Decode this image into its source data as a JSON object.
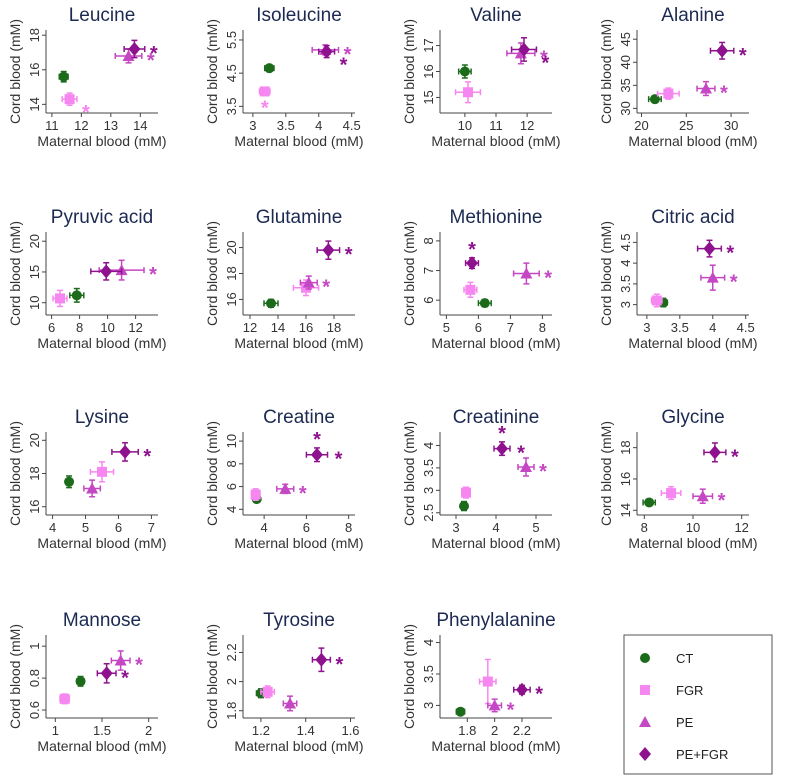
{
  "colors": {
    "CT": "#1b6b1b",
    "FGR": "#f787f0",
    "PE": "#c447c4",
    "PE+FGR": "#8e128e"
  },
  "legend": [
    {
      "label": "CT",
      "marker": "circle",
      "color": "#1b6b1b"
    },
    {
      "label": "FGR",
      "marker": "square",
      "color": "#f787f0"
    },
    {
      "label": "PE",
      "marker": "triangle",
      "color": "#c447c4"
    },
    {
      "label": "PE+FGR",
      "marker": "diamond",
      "color": "#8e128e"
    }
  ],
  "chart_data": [
    {
      "type": "scatter",
      "title": "Leucine",
      "xlabel": "Maternal blood (mM)",
      "ylabel": "Cord blood (mM)",
      "xlim": [
        10.8,
        14.6
      ],
      "ylim": [
        13.5,
        18.3
      ],
      "xticks": [
        11,
        12,
        13,
        14
      ],
      "yticks": [
        14,
        16,
        18
      ],
      "points": [
        {
          "group": "CT",
          "x": 11.4,
          "xerr": 0.15,
          "y": 15.6,
          "yerr": 0.3,
          "star": false
        },
        {
          "group": "FGR",
          "x": 11.6,
          "xerr": 0.25,
          "y": 14.3,
          "yerr": 0.35,
          "star": true,
          "star_pos": ""
        },
        {
          "group": "PE",
          "x": 13.6,
          "xerr": 0.45,
          "y": 16.8,
          "yerr": 0.4,
          "star": true,
          "star_pos": "right"
        },
        {
          "group": "PE+FGR",
          "x": 13.8,
          "xerr": 0.35,
          "y": 17.2,
          "yerr": 0.5,
          "star": true,
          "star_pos": "right"
        }
      ]
    },
    {
      "type": "scatter",
      "title": "Isoleucine",
      "xlabel": "Maternal blood (mM)",
      "ylabel": "Cord blood (mM)",
      "xlim": [
        2.85,
        4.55
      ],
      "ylim": [
        3.3,
        5.8
      ],
      "xticks": [
        3,
        3.5,
        4,
        4.5
      ],
      "yticks": [
        3.5,
        4.5,
        5.5
      ],
      "points": [
        {
          "group": "CT",
          "x": 3.25,
          "xerr": 0.07,
          "y": 4.65,
          "yerr": 0.09,
          "star": false
        },
        {
          "group": "FGR",
          "x": 3.18,
          "xerr": 0.08,
          "y": 3.95,
          "yerr": 0.1,
          "star": true,
          "star_pos": "below"
        },
        {
          "group": "PE",
          "x": 4.1,
          "xerr": 0.2,
          "y": 5.2,
          "yerr": 0.15,
          "star": true,
          "star_pos": "right"
        },
        {
          "group": "PE+FGR",
          "x": 4.12,
          "xerr": 0.12,
          "y": 5.15,
          "yerr": 0.18,
          "star": true,
          "star_pos": ""
        }
      ]
    },
    {
      "type": "scatter",
      "title": "Valine",
      "xlabel": "Maternal blood (mM)",
      "ylabel": "Cord blood (mM)",
      "xlim": [
        9.2,
        12.8
      ],
      "ylim": [
        14.4,
        17.6
      ],
      "xticks": [
        10,
        11,
        12
      ],
      "yticks": [
        15,
        16,
        17
      ],
      "points": [
        {
          "group": "CT",
          "x": 10.0,
          "xerr": 0.2,
          "y": 16.0,
          "yerr": 0.25,
          "star": false
        },
        {
          "group": "FGR",
          "x": 10.1,
          "xerr": 0.4,
          "y": 15.2,
          "yerr": 0.4,
          "star": false
        },
        {
          "group": "PE",
          "x": 11.8,
          "xerr": 0.45,
          "y": 16.7,
          "yerr": 0.4,
          "star": true,
          "star_pos": "right"
        },
        {
          "group": "PE+FGR",
          "x": 11.9,
          "xerr": 0.4,
          "y": 16.85,
          "yerr": 0.45,
          "star": true,
          "star_pos": ""
        }
      ]
    },
    {
      "type": "scatter",
      "title": "Alanine",
      "xlabel": "Maternal blood (mM)",
      "ylabel": "Cord blood (mM)",
      "xlim": [
        19.5,
        32
      ],
      "ylim": [
        29,
        47
      ],
      "xticks": [
        20,
        25,
        30
      ],
      "yticks": [
        30,
        35,
        40,
        45
      ],
      "points": [
        {
          "group": "CT",
          "x": 21.5,
          "xerr": 0.7,
          "y": 32.0,
          "yerr": 0.6,
          "star": false
        },
        {
          "group": "FGR",
          "x": 23.0,
          "xerr": 1.2,
          "y": 33.2,
          "yerr": 1.2,
          "star": false
        },
        {
          "group": "PE",
          "x": 27.2,
          "xerr": 1.0,
          "y": 34.3,
          "yerr": 1.5,
          "star": true,
          "star_pos": "right"
        },
        {
          "group": "PE+FGR",
          "x": 29.0,
          "xerr": 1.3,
          "y": 42.5,
          "yerr": 1.8,
          "star": true,
          "star_pos": "right"
        }
      ]
    },
    {
      "type": "scatter",
      "title": "Pyruvic acid",
      "xlabel": "Maternal blood (mM)",
      "ylabel": "Cord blood (mM)",
      "xlim": [
        5.6,
        13.6
      ],
      "ylim": [
        8.0,
        21.5
      ],
      "xticks": [
        6,
        8,
        10,
        12
      ],
      "yticks": [
        10,
        15,
        20
      ],
      "points": [
        {
          "group": "CT",
          "x": 7.8,
          "xerr": 0.5,
          "y": 11.2,
          "yerr": 1.1,
          "star": false
        },
        {
          "group": "FGR",
          "x": 6.6,
          "xerr": 0.5,
          "y": 10.7,
          "yerr": 1.3,
          "star": false
        },
        {
          "group": "PE",
          "x": 11.0,
          "xerr": 1.6,
          "y": 15.3,
          "yerr": 1.6,
          "star": true,
          "star_pos": "right"
        },
        {
          "group": "PE+FGR",
          "x": 9.9,
          "xerr": 1.1,
          "y": 15.1,
          "yerr": 1.4,
          "star": false
        }
      ]
    },
    {
      "type": "scatter",
      "title": "Glutamine",
      "xlabel": "Maternal blood (mM)",
      "ylabel": "Cord blood (mM)",
      "xlim": [
        11.5,
        19.5
      ],
      "ylim": [
        14.8,
        21.2
      ],
      "xticks": [
        12,
        14,
        16,
        18
      ],
      "yticks": [
        16,
        18,
        20
      ],
      "points": [
        {
          "group": "CT",
          "x": 13.5,
          "xerr": 0.5,
          "y": 15.7,
          "yerr": 0.3,
          "star": false
        },
        {
          "group": "FGR",
          "x": 16.0,
          "xerr": 0.9,
          "y": 16.9,
          "yerr": 0.6,
          "star": false
        },
        {
          "group": "PE",
          "x": 16.2,
          "xerr": 0.6,
          "y": 17.3,
          "yerr": 0.5,
          "star": true,
          "star_pos": "right"
        },
        {
          "group": "PE+FGR",
          "x": 17.6,
          "xerr": 0.8,
          "y": 19.8,
          "yerr": 0.7,
          "star": true,
          "star_pos": "right"
        }
      ]
    },
    {
      "type": "scatter",
      "title": "Methionine",
      "xlabel": "Maternal blood (mM)",
      "ylabel": "Cord blood (mM)",
      "xlim": [
        4.8,
        8.3
      ],
      "ylim": [
        5.5,
        8.3
      ],
      "xticks": [
        5,
        6,
        7,
        8
      ],
      "yticks": [
        6,
        7,
        8
      ],
      "points": [
        {
          "group": "CT",
          "x": 6.2,
          "xerr": 0.2,
          "y": 5.9,
          "yerr": 0.12,
          "star": false
        },
        {
          "group": "FGR",
          "x": 5.75,
          "xerr": 0.2,
          "y": 6.35,
          "yerr": 0.25,
          "star": false
        },
        {
          "group": "PE",
          "x": 7.5,
          "xerr": 0.4,
          "y": 6.9,
          "yerr": 0.35,
          "star": true,
          "star_pos": "right"
        },
        {
          "group": "PE+FGR",
          "x": 5.8,
          "xerr": 0.2,
          "y": 7.25,
          "yerr": 0.18,
          "star": true,
          "star_pos": "above"
        }
      ]
    },
    {
      "type": "scatter",
      "title": "Citric acid",
      "xlabel": "Maternal blood (mM)",
      "ylabel": "Cord blood (mM)",
      "xlim": [
        2.85,
        4.55
      ],
      "ylim": [
        2.75,
        4.75
      ],
      "xticks": [
        3,
        3.5,
        4,
        4.5
      ],
      "yticks": [
        3,
        3.5,
        4,
        4.5
      ],
      "points": [
        {
          "group": "CT",
          "x": 3.25,
          "xerr": 0.06,
          "y": 3.05,
          "yerr": 0.1,
          "star": false
        },
        {
          "group": "FGR",
          "x": 3.15,
          "xerr": 0.08,
          "y": 3.1,
          "yerr": 0.15,
          "star": false
        },
        {
          "group": "PE",
          "x": 4.0,
          "xerr": 0.18,
          "y": 3.65,
          "yerr": 0.3,
          "star": true,
          "star_pos": "right"
        },
        {
          "group": "PE+FGR",
          "x": 3.95,
          "xerr": 0.18,
          "y": 4.35,
          "yerr": 0.2,
          "star": true,
          "star_pos": "right"
        }
      ]
    },
    {
      "type": "scatter",
      "title": "Lysine",
      "xlabel": "Maternal blood (mM)",
      "ylabel": "Cord blood (mM)",
      "xlim": [
        3.8,
        7.2
      ],
      "ylim": [
        15.5,
        20.5
      ],
      "xticks": [
        4,
        5,
        6,
        7
      ],
      "yticks": [
        16,
        18,
        20
      ],
      "points": [
        {
          "group": "CT",
          "x": 4.5,
          "xerr": 0.1,
          "y": 17.5,
          "yerr": 0.35,
          "star": false
        },
        {
          "group": "FGR",
          "x": 5.5,
          "xerr": 0.35,
          "y": 18.1,
          "yerr": 0.6,
          "star": false
        },
        {
          "group": "PE",
          "x": 5.2,
          "xerr": 0.25,
          "y": 17.1,
          "yerr": 0.5,
          "star": false
        },
        {
          "group": "PE+FGR",
          "x": 6.2,
          "xerr": 0.4,
          "y": 19.3,
          "yerr": 0.55,
          "star": true,
          "star_pos": "right"
        }
      ]
    },
    {
      "type": "scatter",
      "title": "Creatine",
      "xlabel": "Maternal blood (mM)",
      "ylabel": "Cord blood (mM)",
      "xlim": [
        3.0,
        8.3
      ],
      "ylim": [
        3.5,
        10.8
      ],
      "xticks": [
        4,
        6,
        8
      ],
      "yticks": [
        4,
        6,
        8,
        10
      ],
      "points": [
        {
          "group": "CT",
          "x": 3.65,
          "xerr": 0.1,
          "y": 4.9,
          "yerr": 0.2,
          "star": false
        },
        {
          "group": "FGR",
          "x": 3.6,
          "xerr": 0.2,
          "y": 5.3,
          "yerr": 0.5,
          "star": false
        },
        {
          "group": "PE",
          "x": 5.0,
          "xerr": 0.4,
          "y": 5.8,
          "yerr": 0.4,
          "star": true,
          "star_pos": "right"
        },
        {
          "group": "PE+FGR",
          "x": 6.5,
          "xerr": 0.5,
          "y": 8.8,
          "yerr": 0.6,
          "star": true,
          "star_pos": "right-above"
        }
      ]
    },
    {
      "type": "scatter",
      "title": "Creatinine",
      "xlabel": "Maternal blood (mM)",
      "ylabel": "Cord blood (mM)",
      "xlim": [
        2.6,
        5.4
      ],
      "ylim": [
        2.45,
        4.3
      ],
      "xticks": [
        3,
        4,
        5
      ],
      "yticks": [
        2.5,
        3,
        3.5,
        4
      ],
      "points": [
        {
          "group": "CT",
          "x": 3.2,
          "xerr": 0.08,
          "y": 2.65,
          "yerr": 0.1,
          "star": false
        },
        {
          "group": "FGR",
          "x": 3.25,
          "xerr": 0.1,
          "y": 2.95,
          "yerr": 0.12,
          "star": false
        },
        {
          "group": "PE",
          "x": 4.75,
          "xerr": 0.2,
          "y": 3.52,
          "yerr": 0.2,
          "star": true,
          "star_pos": "right"
        },
        {
          "group": "PE+FGR",
          "x": 4.15,
          "xerr": 0.2,
          "y": 3.93,
          "yerr": 0.15,
          "star": true,
          "star_pos": "right-above"
        }
      ]
    },
    {
      "type": "scatter",
      "title": "Glycine",
      "xlabel": "Maternal blood (mM)",
      "ylabel": "Cord blood (mM)",
      "xlim": [
        7.7,
        12.3
      ],
      "ylim": [
        13.7,
        19.0
      ],
      "xticks": [
        8,
        10,
        12
      ],
      "yticks": [
        14,
        16,
        18
      ],
      "points": [
        {
          "group": "CT",
          "x": 8.2,
          "xerr": 0.25,
          "y": 14.5,
          "yerr": 0.2,
          "star": false
        },
        {
          "group": "FGR",
          "x": 9.1,
          "xerr": 0.4,
          "y": 15.1,
          "yerr": 0.4,
          "star": false
        },
        {
          "group": "PE",
          "x": 10.4,
          "xerr": 0.4,
          "y": 14.9,
          "yerr": 0.45,
          "star": true,
          "star_pos": "right"
        },
        {
          "group": "PE+FGR",
          "x": 10.9,
          "xerr": 0.45,
          "y": 17.7,
          "yerr": 0.6,
          "star": true,
          "star_pos": "right"
        }
      ]
    },
    {
      "type": "scatter",
      "title": "Mannose",
      "xlabel": "Maternal blood (mM)",
      "ylabel": "Cord blood (mM)",
      "xlim": [
        0.9,
        2.1
      ],
      "ylim": [
        0.55,
        1.07
      ],
      "xticks": [
        1,
        1.5,
        2
      ],
      "yticks": [
        0.6,
        0.8,
        1
      ],
      "points": [
        {
          "group": "CT",
          "x": 1.27,
          "xerr": 0.04,
          "y": 0.78,
          "yerr": 0.03,
          "star": false
        },
        {
          "group": "FGR",
          "x": 1.1,
          "xerr": 0.05,
          "y": 0.67,
          "yerr": 0.03,
          "star": false
        },
        {
          "group": "PE",
          "x": 1.7,
          "xerr": 0.1,
          "y": 0.91,
          "yerr": 0.06,
          "star": true,
          "star_pos": "right"
        },
        {
          "group": "PE+FGR",
          "x": 1.55,
          "xerr": 0.1,
          "y": 0.83,
          "yerr": 0.06,
          "star": true,
          "star_pos": "right"
        }
      ]
    },
    {
      "type": "scatter",
      "title": "Tyrosine",
      "xlabel": "Maternal blood (mM)",
      "ylabel": "Cord blood (mM)",
      "xlim": [
        1.12,
        1.62
      ],
      "ylim": [
        1.75,
        2.32
      ],
      "xticks": [
        1.2,
        1.4,
        1.6
      ],
      "yticks": [
        1.8,
        2,
        2.2
      ],
      "points": [
        {
          "group": "CT",
          "x": 1.2,
          "xerr": 0.02,
          "y": 1.92,
          "yerr": 0.03,
          "star": false
        },
        {
          "group": "FGR",
          "x": 1.23,
          "xerr": 0.03,
          "y": 1.93,
          "yerr": 0.04,
          "star": false
        },
        {
          "group": "PE",
          "x": 1.33,
          "xerr": 0.03,
          "y": 1.85,
          "yerr": 0.05,
          "star": false
        },
        {
          "group": "PE+FGR",
          "x": 1.47,
          "xerr": 0.04,
          "y": 2.15,
          "yerr": 0.08,
          "star": true,
          "star_pos": "right"
        }
      ]
    },
    {
      "type": "scatter",
      "title": "Phenylalanine",
      "xlabel": "Maternal blood (mM)",
      "ylabel": "Cord blood (mM)",
      "xlim": [
        1.6,
        2.42
      ],
      "ylim": [
        2.8,
        4.12
      ],
      "xticks": [
        1.8,
        2,
        2.2
      ],
      "yticks": [
        3,
        3.5,
        4
      ],
      "points": [
        {
          "group": "CT",
          "x": 1.75,
          "xerr": 0.03,
          "y": 2.9,
          "yerr": 0.03,
          "star": false
        },
        {
          "group": "FGR",
          "x": 1.95,
          "xerr": 0.06,
          "y": 3.38,
          "yerr": 0.35,
          "star": false
        },
        {
          "group": "PE",
          "x": 2.0,
          "xerr": 0.05,
          "y": 3.0,
          "yerr": 0.1,
          "star": true,
          "star_pos": "right"
        },
        {
          "group": "PE+FGR",
          "x": 2.2,
          "xerr": 0.06,
          "y": 3.25,
          "yerr": 0.07,
          "star": true,
          "star_pos": "right"
        }
      ]
    }
  ]
}
